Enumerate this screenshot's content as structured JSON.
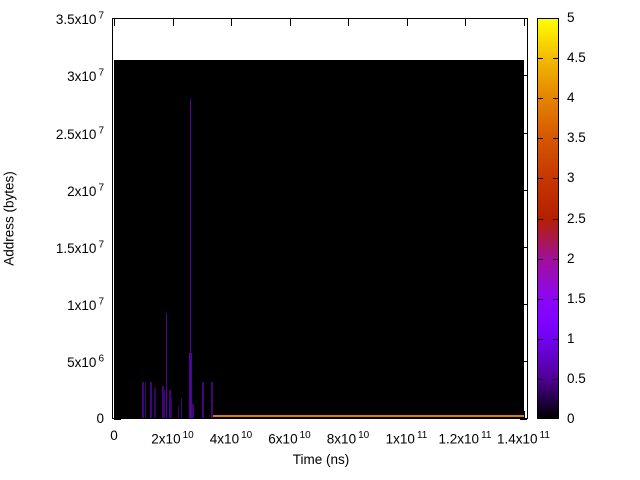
{
  "figure": {
    "background_color": "#ffffff",
    "plot_background": "#000000"
  },
  "y_axis": {
    "label": "Address (bytes)",
    "ticks": [
      {
        "m": "0",
        "e": null,
        "v": 0
      },
      {
        "m": "5x10",
        "e": "6",
        "v": 5000000
      },
      {
        "m": "1x10",
        "e": "7",
        "v": 10000000
      },
      {
        "m": "1.5x10",
        "e": "7",
        "v": 15000000
      },
      {
        "m": "2x10",
        "e": "7",
        "v": 20000000
      },
      {
        "m": "2.5x10",
        "e": "7",
        "v": 25000000
      },
      {
        "m": "3x10",
        "e": "7",
        "v": 30000000
      },
      {
        "m": "3.5x10",
        "e": "7",
        "v": 35000000
      }
    ]
  },
  "x_axis": {
    "label": "Time (ns)",
    "ticks": [
      {
        "m": "0",
        "e": null,
        "v": 0
      },
      {
        "m": "2x10",
        "e": "10",
        "v": 20000000000
      },
      {
        "m": "4x10",
        "e": "10",
        "v": 40000000000
      },
      {
        "m": "6x10",
        "e": "10",
        "v": 60000000000
      },
      {
        "m": "8x10",
        "e": "10",
        "v": 80000000000
      },
      {
        "m": "1x10",
        "e": "11",
        "v": 100000000000
      },
      {
        "m": "1.2x10",
        "e": "11",
        "v": 120000000000
      },
      {
        "m": "1.4x10",
        "e": "11",
        "v": 140000000000
      }
    ]
  },
  "colorbar": {
    "min": 0,
    "max": 5,
    "ticks": [
      {
        "label": "5",
        "v": 5
      },
      {
        "label": "4.5",
        "v": 4.5
      },
      {
        "label": "4",
        "v": 4
      },
      {
        "label": "3.5",
        "v": 3.5
      },
      {
        "label": "3",
        "v": 3
      },
      {
        "label": "2.5",
        "v": 2.5
      },
      {
        "label": "2",
        "v": 2
      },
      {
        "label": "1.5",
        "v": 1.5
      },
      {
        "label": "1",
        "v": 1
      },
      {
        "label": "0.5",
        "v": 0.5
      },
      {
        "label": "0",
        "v": 0
      }
    ],
    "gradient": [
      {
        "v": 5,
        "color": "#ffff00"
      },
      {
        "v": 4.5,
        "color": "#f2ba00"
      },
      {
        "v": 4,
        "color": "#e48300"
      },
      {
        "v": 3.5,
        "color": "#d55700"
      },
      {
        "v": 3,
        "color": "#c63700"
      },
      {
        "v": 2.5,
        "color": "#b42000"
      },
      {
        "v": 2,
        "color": "#a11096"
      },
      {
        "v": 1.5,
        "color": "#8c07f3"
      },
      {
        "v": 1.25,
        "color": "#8004ff"
      },
      {
        "v": 1,
        "color": "#7202f3"
      },
      {
        "v": 0.5,
        "color": "#510096"
      },
      {
        "v": 0.15,
        "color": "#16012e"
      },
      {
        "v": 0,
        "color": "#000000"
      }
    ]
  },
  "chart_data": {
    "type": "heatmap",
    "title": "",
    "xlabel": "Time (ns)",
    "ylabel": "Address (bytes)",
    "xlim": [
      0,
      142000000000
    ],
    "ylim": [
      0,
      35000000
    ],
    "value_range": [
      0,
      5
    ],
    "grid": false,
    "legend_position": "colorbar-right",
    "background_block": {
      "time_range": [
        0,
        140200000000
      ],
      "address_range": [
        0,
        31300000
      ],
      "value": 0,
      "color": "#000000"
    },
    "spikes": [
      {
        "time": 9900000000,
        "address_peak": 3200000,
        "value": 0.5,
        "color": "#42047a",
        "w": 2
      },
      {
        "time": 10900000000,
        "address_peak": 3200000,
        "value": 0.5,
        "color": "#42047a",
        "w": 1
      },
      {
        "time": 12700000000,
        "address_peak": 3200000,
        "value": 0.5,
        "color": "#42047a",
        "w": 2
      },
      {
        "time": 14000000000,
        "address_peak": 2700000,
        "value": 0.4,
        "color": "#35035f",
        "w": 2
      },
      {
        "time": 16800000000,
        "address_peak": 2900000,
        "value": 0.5,
        "color": "#42047a",
        "w": 2
      },
      {
        "time": 17400000000,
        "address_peak": 2500000,
        "value": 0.5,
        "color": "#42047a",
        "w": 1
      },
      {
        "time": 18100000000,
        "address_peak": 9300000,
        "value": 0.7,
        "color": "#4f0691",
        "w": 1
      },
      {
        "time": 19100000000,
        "address_peak": 2500000,
        "value": 0.5,
        "color": "#42047a",
        "w": 2
      },
      {
        "time": 19800000000,
        "address_peak": 1800000,
        "value": 0.4,
        "color": "#35035f",
        "w": 1
      },
      {
        "time": 21900000000,
        "address_peak": 1100000,
        "value": 0.4,
        "color": "#35035f",
        "w": 1
      },
      {
        "time": 23200000000,
        "address_peak": 1800000,
        "value": 0.5,
        "color": "#42047a",
        "w": 1
      },
      {
        "time": 26000000000,
        "address_peak": 28000000,
        "value": 0.7,
        "color": "#4f0691",
        "w": 1,
        "base_peak": 5800000,
        "base_w": 3
      },
      {
        "time": 27000000000,
        "address_peak": 1300000,
        "value": 0.5,
        "color": "#42047a",
        "w": 2
      },
      {
        "time": 30400000000,
        "address_peak": 3200000,
        "value": 0.5,
        "color": "#42047a",
        "w": 2
      },
      {
        "time": 33500000000,
        "address_peak": 3200000,
        "value": 0.5,
        "color": "#42047a",
        "w": 2
      }
    ],
    "baseline_streak": {
      "time_range": [
        34000000000,
        140200000000
      ],
      "address": 0,
      "value": 4,
      "color": "#d97d10"
    }
  }
}
